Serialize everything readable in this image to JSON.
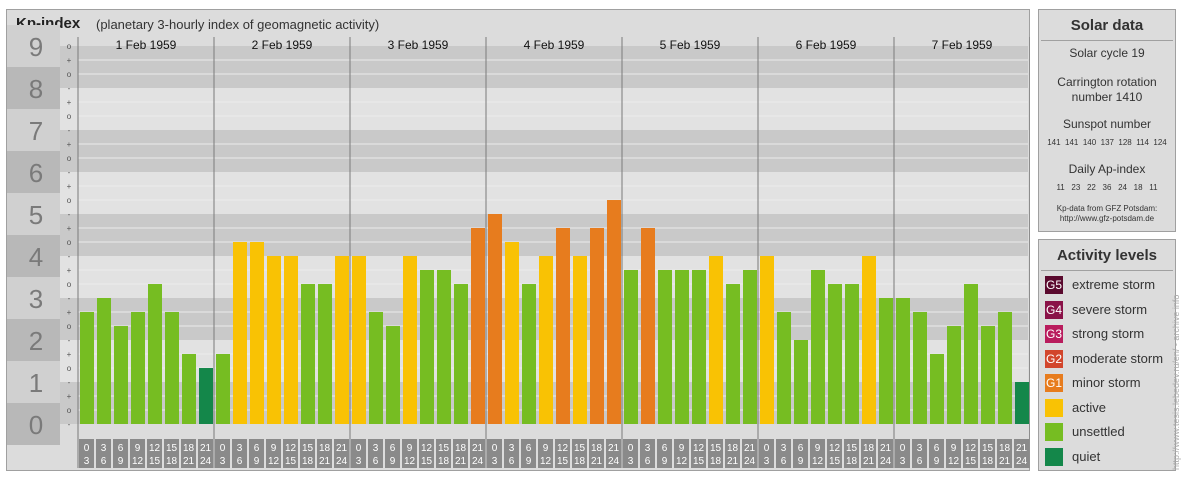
{
  "header": {
    "title": "Kp-index",
    "subtitle": "(planetary 3-hourly index of geomagnetic activity)"
  },
  "chart_data": {
    "type": "bar",
    "title": "Kp-index",
    "subtitle": "(planetary 3-hourly index of geomagnetic activity)",
    "ylim": [
      0,
      9
    ],
    "y_ticks": [
      "0",
      "1",
      "2",
      "3",
      "4",
      "5",
      "6",
      "7",
      "8",
      "9"
    ],
    "y_subticks": [
      "+",
      "o",
      "-"
    ],
    "days": [
      "1 Feb 1959",
      "2 Feb 1959",
      "3 Feb 1959",
      "4 Feb 1959",
      "5 Feb 1959",
      "6 Feb 1959",
      "7 Feb 1959"
    ],
    "interval_start_labels": [
      "0",
      "3",
      "6",
      "9",
      "12",
      "15",
      "18",
      "21"
    ],
    "interval_end_labels": [
      "3",
      "6",
      "9",
      "12",
      "15",
      "18",
      "21",
      "24"
    ],
    "values": [
      [
        2.667,
        3.0,
        2.333,
        2.667,
        3.333,
        2.667,
        1.667,
        1.333
      ],
      [
        1.667,
        4.333,
        4.333,
        4.0,
        4.0,
        3.333,
        3.333,
        4.0
      ],
      [
        4.0,
        2.667,
        2.333,
        4.0,
        3.667,
        3.667,
        3.333,
        4.667
      ],
      [
        5.0,
        4.333,
        3.333,
        4.0,
        4.667,
        4.0,
        4.667,
        5.333
      ],
      [
        3.667,
        4.667,
        3.667,
        3.667,
        3.667,
        4.0,
        3.333,
        3.667
      ],
      [
        4.0,
        2.667,
        2.0,
        3.667,
        3.333,
        3.333,
        4.0,
        3.0
      ],
      [
        3.0,
        2.667,
        1.667,
        2.333,
        3.333,
        2.333,
        2.667,
        1.0
      ]
    ],
    "colors": {
      "quiet": "#14874a",
      "unsettled": "#76bd22",
      "active": "#f9c204",
      "minor_storm": "#e77c1e",
      "moderate_storm": "#d2452b",
      "strong_storm": "#b91c5d",
      "severe_storm": "#8a1248",
      "extreme_storm": "#5a0a2e"
    }
  },
  "solar": {
    "title": "Solar data",
    "cycle": "Solar cycle 19",
    "carrington_line1": "Carrington rotation",
    "carrington_line2": "number 1410",
    "sunspot_title": "Sunspot number",
    "sunspot_values": "141  141  140  137  128  114  124",
    "ap_title": "Daily Ap-index",
    "ap_values": "11   23   22   36   24   18   11",
    "source_line1": "Kp-data from GFZ Potsdam:",
    "source_line2": "http://www.gfz-potsdam.de"
  },
  "levels": {
    "title": "Activity levels",
    "items": [
      {
        "badge": "G5",
        "label": "extreme storm",
        "color": "#5a0a2e"
      },
      {
        "badge": "G4",
        "label": "severe storm",
        "color": "#8a1248"
      },
      {
        "badge": "G3",
        "label": "strong storm",
        "color": "#b91c5d"
      },
      {
        "badge": "G2",
        "label": "moderate storm",
        "color": "#d2452b"
      },
      {
        "badge": "G1",
        "label": "minor storm",
        "color": "#e77c1e"
      },
      {
        "badge": "",
        "label": "active",
        "color": "#f9c204"
      },
      {
        "badge": "",
        "label": "unsettled",
        "color": "#76bd22"
      },
      {
        "badge": "",
        "label": "quiet",
        "color": "#14874a"
      }
    ]
  },
  "credit": "http://www.tesis.lebedev.ru/en/ - archive info"
}
